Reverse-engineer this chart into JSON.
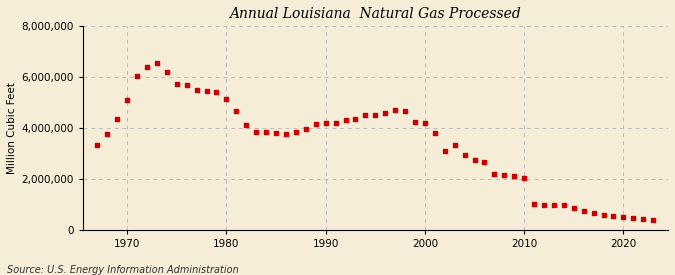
{
  "title": "Annual Louisiana  Natural Gas Processed",
  "ylabel": "Million Cubic Feet",
  "source": "Source: U.S. Energy Information Administration",
  "background_color": "#f5edd8",
  "marker_color": "#cc0000",
  "grid_color": "#bbbbbb",
  "years": [
    1967,
    1968,
    1969,
    1970,
    1971,
    1972,
    1973,
    1974,
    1975,
    1976,
    1977,
    1978,
    1979,
    1980,
    1981,
    1982,
    1983,
    1984,
    1985,
    1986,
    1987,
    1988,
    1989,
    1990,
    1991,
    1992,
    1993,
    1994,
    1995,
    1996,
    1997,
    1998,
    1999,
    2000,
    2001,
    2002,
    2003,
    2004,
    2005,
    2006,
    2007,
    2008,
    2009,
    2010,
    2011,
    2012,
    2013,
    2014,
    2015,
    2016,
    2017,
    2018,
    2019,
    2020,
    2021,
    2022,
    2023
  ],
  "values": [
    3350000,
    3750000,
    4350000,
    5100000,
    6050000,
    6400000,
    6550000,
    6200000,
    5750000,
    5700000,
    5500000,
    5450000,
    5400000,
    5150000,
    4650000,
    4100000,
    3850000,
    3850000,
    3800000,
    3750000,
    3850000,
    3950000,
    4150000,
    4200000,
    4200000,
    4300000,
    4350000,
    4500000,
    4500000,
    4600000,
    4700000,
    4650000,
    4250000,
    4200000,
    3800000,
    3100000,
    3350000,
    2950000,
    2750000,
    2650000,
    2200000,
    2150000,
    2100000,
    2050000,
    1000000,
    990000,
    980000,
    960000,
    850000,
    730000,
    640000,
    590000,
    540000,
    490000,
    450000,
    420000,
    390000
  ],
  "ylim": [
    0,
    8000000
  ],
  "yticks": [
    0,
    2000000,
    4000000,
    6000000,
    8000000
  ],
  "xticks": [
    1970,
    1980,
    1990,
    2000,
    2010,
    2020
  ],
  "xlim": [
    1965.5,
    2024.5
  ]
}
